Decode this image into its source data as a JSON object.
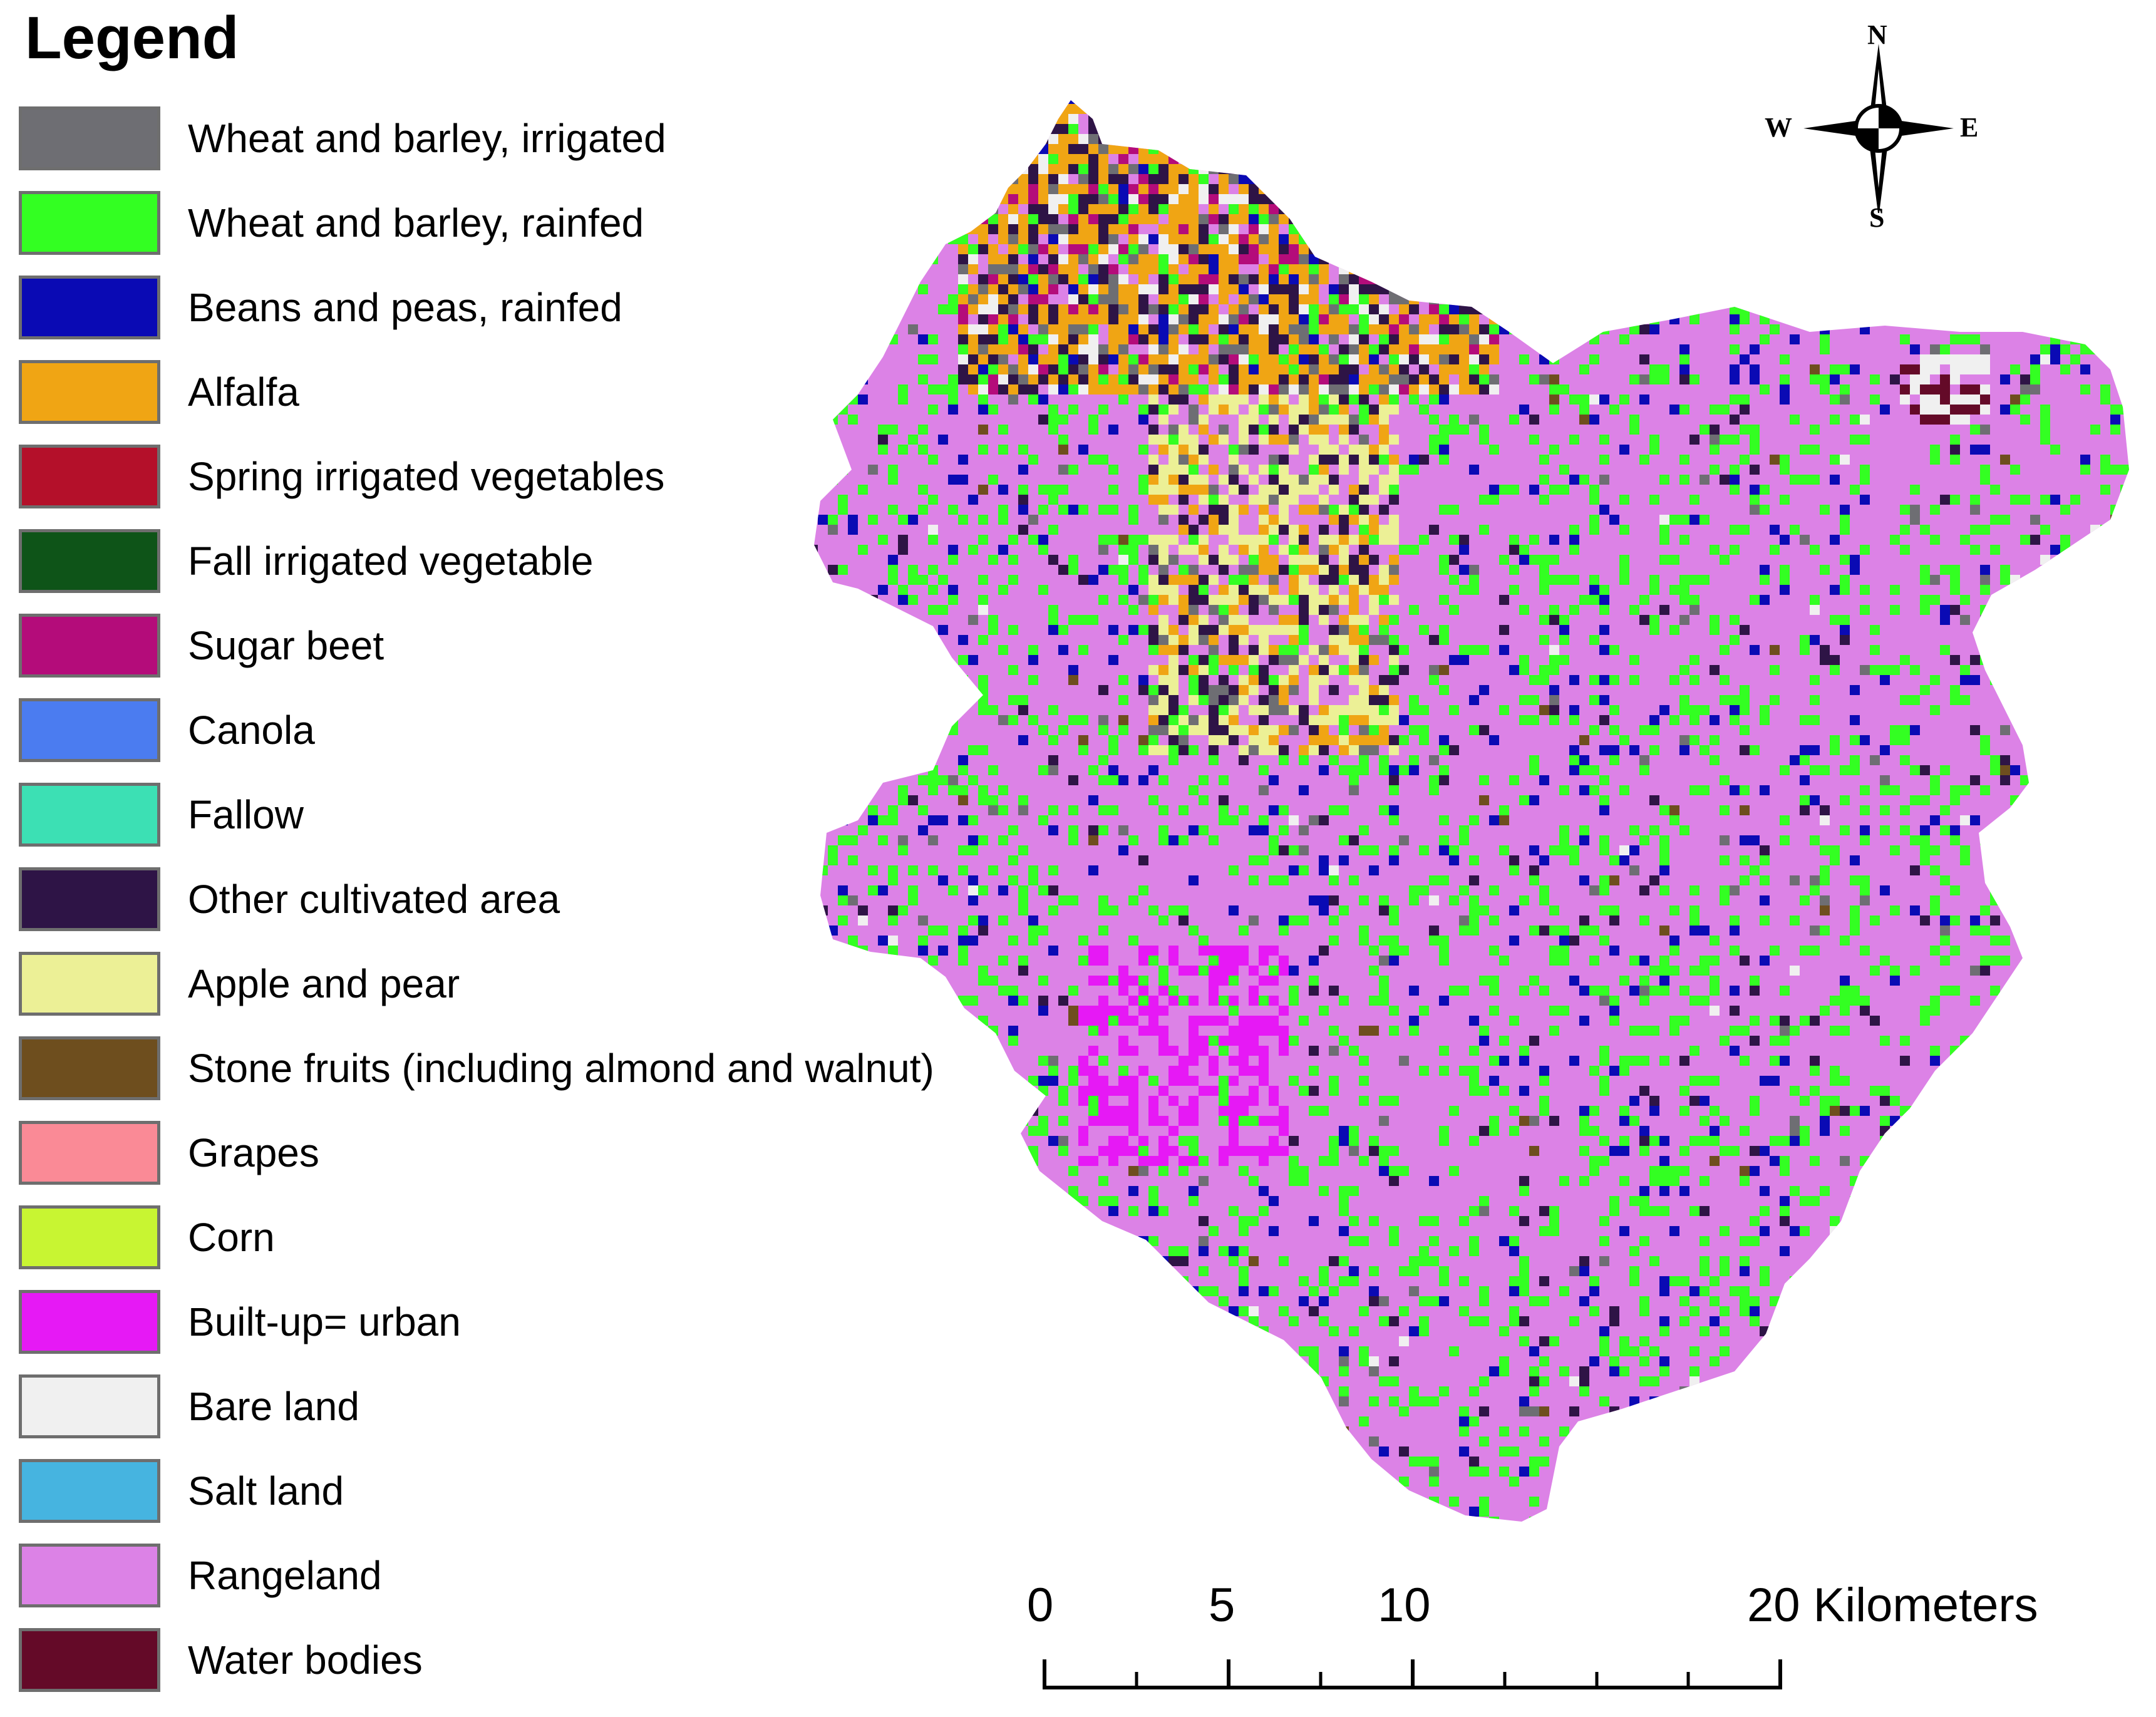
{
  "legend": {
    "title": "Legend",
    "items": [
      {
        "label": "Wheat and barley, irrigated",
        "color": "#6e6e73"
      },
      {
        "label": "Wheat and barley, rainfed",
        "color": "#33ff22"
      },
      {
        "label": "Beans and peas, rainfed",
        "color": "#0a0ab4"
      },
      {
        "label": "Alfalfa",
        "color": "#f0a514"
      },
      {
        "label": "Spring irrigated vegetables",
        "color": "#b4102a"
      },
      {
        "label": "Fall irrigated vegetable",
        "color": "#0e5418"
      },
      {
        "label": "Sugar beet",
        "color": "#b40c7a"
      },
      {
        "label": "Canola",
        "color": "#4b7cf0"
      },
      {
        "label": "Fallow",
        "color": "#3ce0b4"
      },
      {
        "label": "Other cultivated area",
        "color": "#2e1446"
      },
      {
        "label": "Apple and pear",
        "color": "#ecf096"
      },
      {
        "label": "Stone fruits (including almond and walnut)",
        "color": "#6e4e1e"
      },
      {
        "label": "Grapes",
        "color": "#fa8a96"
      },
      {
        "label": "Corn",
        "color": "#c8f532"
      },
      {
        "label": "Built-up= urban",
        "color": "#e619f5"
      },
      {
        "label": "Bare land",
        "color": "#f0f0f0"
      },
      {
        "label": "Salt land",
        "color": "#46b4e0"
      },
      {
        "label": "Rangeland",
        "color": "#dc82e6"
      },
      {
        "label": "Water bodies",
        "color": "#640a28"
      }
    ]
  },
  "compass": {
    "north": "N",
    "south": "S",
    "east": "E",
    "west": "W"
  },
  "scale": {
    "ticks": [
      "0",
      "5",
      "10",
      "20 Kilometers"
    ]
  }
}
